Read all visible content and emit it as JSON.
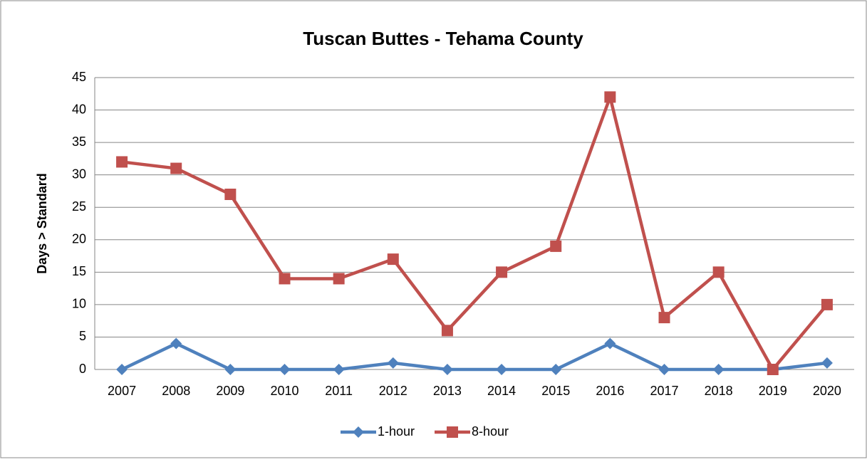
{
  "chart_data": {
    "type": "line",
    "title": "Tuscan Buttes - Tehama County",
    "y_label": "Days > Standard",
    "categories": [
      "2007",
      "2008",
      "2009",
      "2010",
      "2011",
      "2012",
      "2013",
      "2014",
      "2015",
      "2016",
      "2017",
      "2018",
      "2019",
      "2020"
    ],
    "series": [
      {
        "name": "1-hour",
        "color": "#4f81bd",
        "marker": "diamond",
        "values": [
          0,
          4,
          0,
          0,
          0,
          1,
          0,
          0,
          0,
          4,
          0,
          0,
          0,
          1
        ]
      },
      {
        "name": "8-hour",
        "color": "#c0504d",
        "marker": "square",
        "values": [
          32,
          31,
          27,
          14,
          14,
          17,
          6,
          15,
          19,
          42,
          8,
          15,
          0,
          10
        ]
      }
    ],
    "ylim": [
      0,
      45
    ],
    "yticks": [
      0,
      5,
      10,
      15,
      20,
      25,
      30,
      35,
      40,
      45
    ],
    "grid": true,
    "legend": "bottom"
  }
}
